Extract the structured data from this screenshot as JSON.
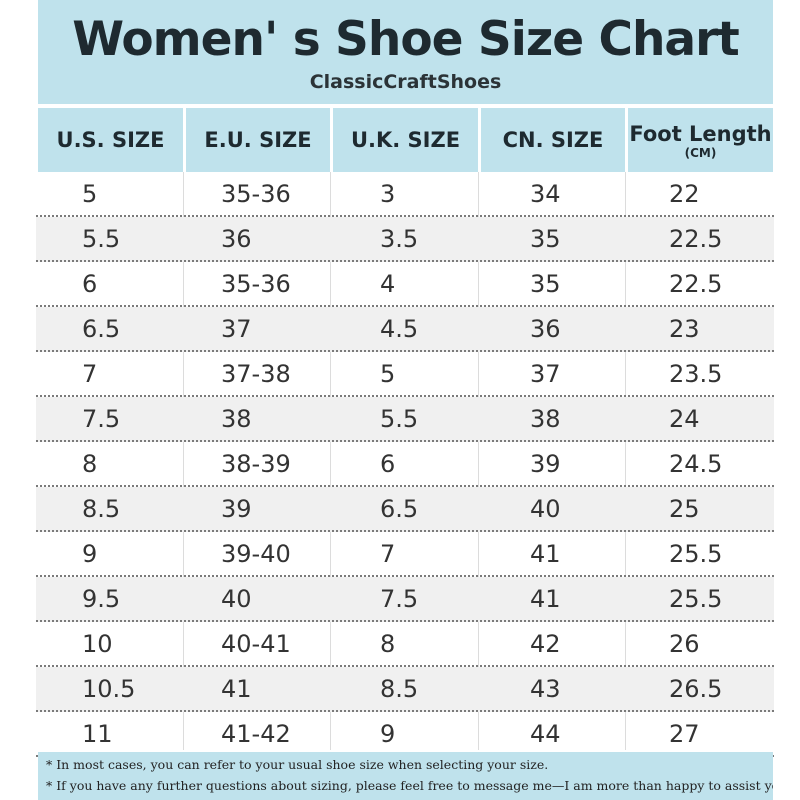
{
  "title": "Women' s Shoe Size Chart",
  "brand": "ClassicCraftShoes",
  "headers": [
    {
      "label": "U.S. SIZE",
      "sub": ""
    },
    {
      "label": "E.U. SIZE",
      "sub": ""
    },
    {
      "label": "U.K. SIZE",
      "sub": ""
    },
    {
      "label": "CN. SIZE",
      "sub": ""
    },
    {
      "label": "Foot Length",
      "sub": "(CM)"
    }
  ],
  "rows": [
    [
      "5",
      "35-36",
      "3",
      "34",
      "22"
    ],
    [
      "5.5",
      "36",
      "3.5",
      "35",
      "22.5"
    ],
    [
      "6",
      "35-36",
      "4",
      "35",
      "22.5"
    ],
    [
      "6.5",
      "37",
      "4.5",
      "36",
      "23"
    ],
    [
      "7",
      "37-38",
      "5",
      "37",
      "23.5"
    ],
    [
      "7.5",
      "38",
      "5.5",
      "38",
      "24"
    ],
    [
      "8",
      "38-39",
      "6",
      "39",
      "24.5"
    ],
    [
      "8.5",
      "39",
      "6.5",
      "40",
      "25"
    ],
    [
      "9",
      "39-40",
      "7",
      "41",
      "25.5"
    ],
    [
      "9.5",
      "40",
      "7.5",
      "41",
      "25.5"
    ],
    [
      "10",
      "40-41",
      "8",
      "42",
      "26"
    ],
    [
      "10.5",
      "41",
      "8.5",
      "43",
      "26.5"
    ],
    [
      "11",
      "41-42",
      "9",
      "44",
      "27"
    ]
  ],
  "notes": [
    "* In most cases, you can refer to your usual shoe size when selecting your size.",
    "* If you have any further questions about sizing, please feel free to message me—I am more than happy to assist you"
  ],
  "colors": {
    "header_bg": "#bfe2ec",
    "alt_row_bg": "#f0f0f0",
    "title_text": "#1e2a30"
  }
}
